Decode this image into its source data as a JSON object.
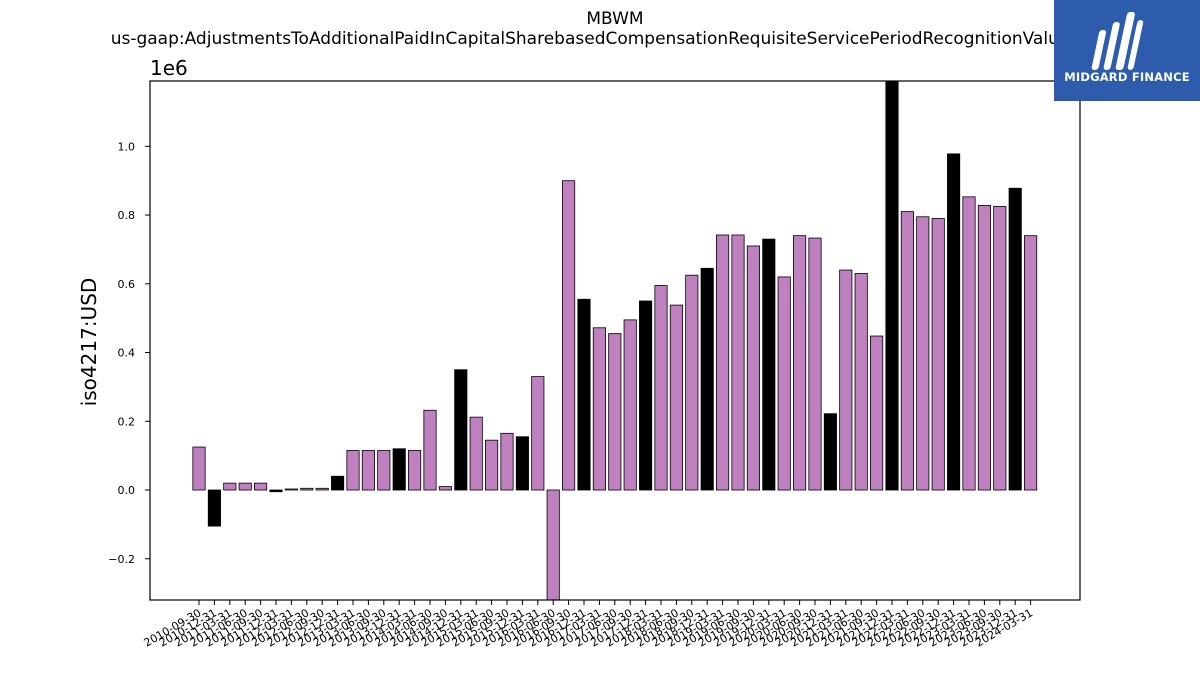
{
  "chart_data": {
    "type": "bar",
    "title": "MBWM",
    "subtitle": "us-gaap:AdjustmentsToAdditionalPaidInCapitalSharebasedCompensationRequisiteServicePeriodRecognitionValue",
    "ylabel": "iso4217:USD",
    "scale_label": "1e6",
    "scale": 1000000,
    "ylim": [
      -0.32,
      1.19
    ],
    "yticks": [
      -0.2,
      0.0,
      0.2,
      0.4,
      0.6,
      0.8,
      1.0
    ],
    "ytick_labels": [
      "−0.2",
      "0.0",
      "0.2",
      "0.4",
      "0.6",
      "0.8",
      "1.0"
    ],
    "categories": [
      "2010-09-30",
      "2010-12-31",
      "2011-03-31",
      "2011-06-30",
      "2011-09-30",
      "2011-12-31",
      "2012-03-31",
      "2012-06-30",
      "2012-09-30",
      "2012-12-31",
      "2013-03-31",
      "2013-06-30",
      "2013-09-30",
      "2013-12-31",
      "2014-03-31",
      "2014-06-30",
      "2014-09-30",
      "2014-12-31",
      "2015-03-31",
      "2015-06-30",
      "2015-09-30",
      "2015-12-31",
      "2016-03-31",
      "2016-06-30",
      "2016-09-30",
      "2016-12-31",
      "2017-03-31",
      "2017-06-30",
      "2017-09-30",
      "2017-12-31",
      "2018-03-31",
      "2018-06-30",
      "2018-09-30",
      "2018-12-31",
      "2019-03-31",
      "2019-06-30",
      "2019-09-30",
      "2019-12-31",
      "2020-03-31",
      "2020-06-30",
      "2020-09-30",
      "2020-12-31",
      "2021-03-31",
      "2021-06-30",
      "2021-09-30",
      "2021-12-31",
      "2022-03-31",
      "2022-06-30",
      "2022-09-30",
      "2022-12-31",
      "2023-03-31",
      "2023-06-30",
      "2023-09-30",
      "2023-12-31",
      "2024-03-31"
    ],
    "values": [
      0.125,
      -0.105,
      0.02,
      0.02,
      0.02,
      -0.005,
      0.003,
      0.005,
      0.005,
      0.04,
      0.115,
      0.115,
      0.115,
      0.12,
      0.115,
      0.232,
      0.01,
      0.35,
      0.212,
      0.145,
      0.165,
      0.155,
      0.33,
      -0.32,
      0.9,
      0.555,
      0.472,
      0.455,
      0.495,
      0.55,
      0.595,
      0.538,
      0.625,
      0.645,
      0.742,
      0.742,
      0.71,
      0.73,
      0.62,
      0.74,
      0.733,
      0.222,
      0.64,
      0.63,
      0.448,
      1.19,
      0.81,
      0.795,
      0.79,
      0.978,
      0.853,
      0.828,
      0.825,
      0.878,
      0.74
    ],
    "highlight": [
      false,
      true,
      false,
      false,
      false,
      true,
      false,
      false,
      false,
      true,
      false,
      false,
      false,
      true,
      false,
      false,
      false,
      true,
      false,
      false,
      false,
      true,
      false,
      false,
      false,
      true,
      false,
      false,
      false,
      true,
      false,
      false,
      false,
      true,
      false,
      false,
      false,
      true,
      false,
      false,
      false,
      true,
      false,
      false,
      false,
      true,
      false,
      false,
      false,
      true,
      false,
      false,
      false,
      true,
      false
    ],
    "colors": {
      "bar": "#bf80c0",
      "highlight_bar": "#000000",
      "edge": "#000000"
    },
    "grid": false,
    "legend": "none"
  },
  "logo": {
    "text": "MIDGARD FINANCE",
    "background": "#2d5cad"
  }
}
